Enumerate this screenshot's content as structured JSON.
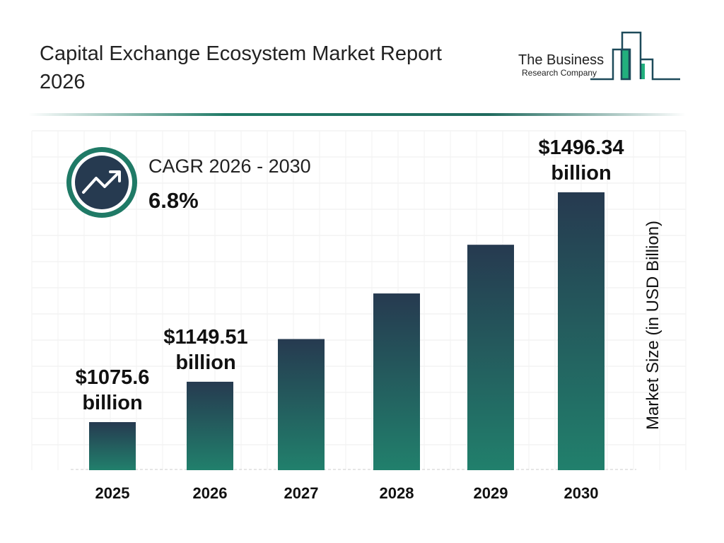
{
  "header": {
    "title": "Capital Exchange Ecosystem Market Report 2026"
  },
  "logo": {
    "line1": "The Business",
    "line2": "Research Company"
  },
  "cagr": {
    "label": "CAGR 2026 - 2030",
    "value": "6.8%",
    "icon": "trending-up-icon"
  },
  "colors": {
    "bar_top": "#263a50",
    "bar_bottom": "#21806c",
    "accent": "#1f7a66"
  },
  "chart_data": {
    "type": "bar",
    "title": "Capital Exchange Ecosystem Market Report 2026",
    "ylabel": "Market Size (in USD Billion)",
    "xlabel": "",
    "categories": [
      "2025",
      "2026",
      "2027",
      "2028",
      "2029",
      "2030"
    ],
    "values": [
      1075.6,
      1149.51,
      1227.68,
      1311.16,
      1400.32,
      1496.34
    ],
    "data_labels": [
      [
        "$1075.6",
        "billion"
      ],
      [
        "$1149.51",
        "billion"
      ],
      null,
      null,
      null,
      [
        "$1496.34",
        "billion"
      ]
    ],
    "grid": true
  }
}
